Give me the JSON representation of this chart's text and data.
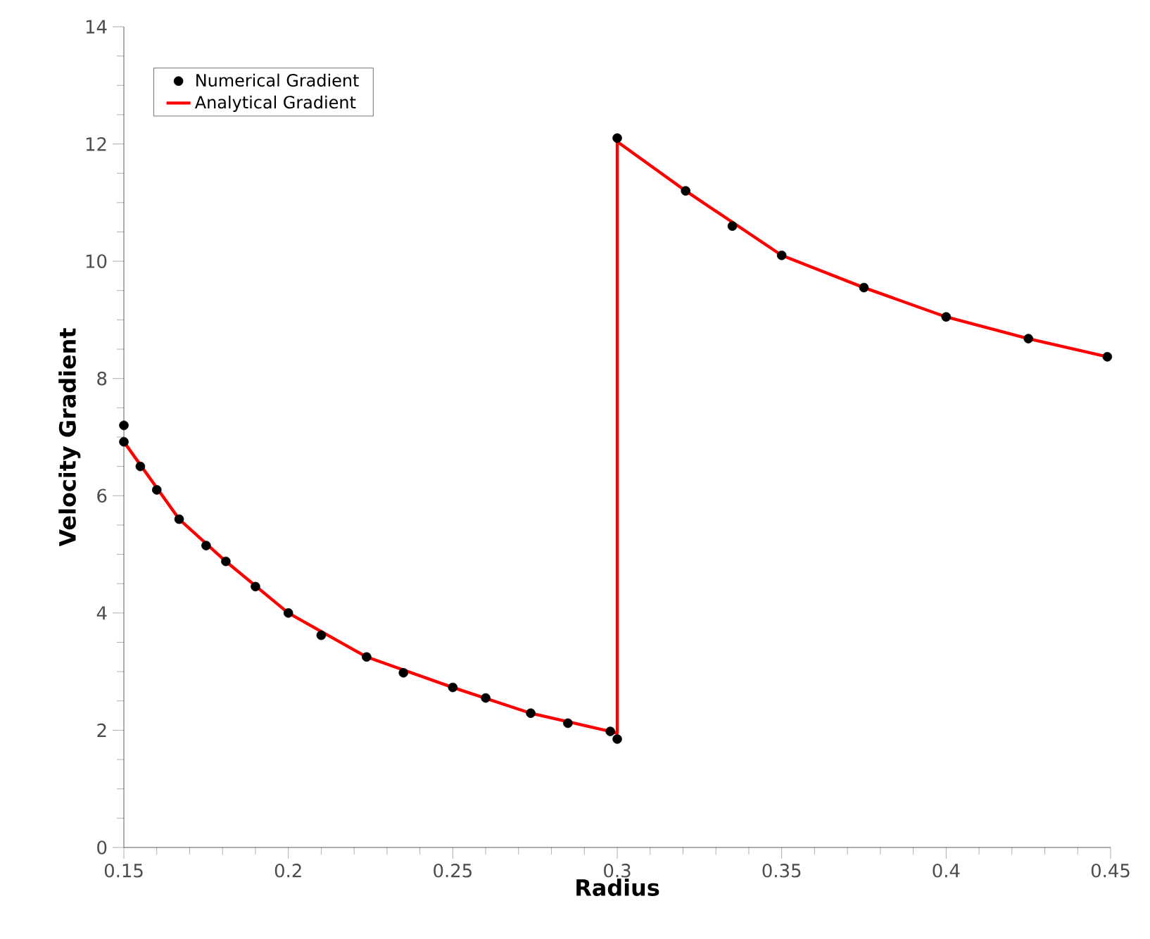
{
  "chart_data": {
    "type": "line",
    "xlabel": "Radius",
    "ylabel": "Velocity Gradient",
    "xlim": [
      0.15,
      0.45
    ],
    "ylim": [
      0,
      14
    ],
    "xticks": [
      0.15,
      0.2,
      0.25,
      0.3,
      0.35,
      0.4,
      0.45
    ],
    "yticks": [
      0,
      2,
      4,
      6,
      8,
      10,
      12,
      14
    ],
    "legend": "top left",
    "series": [
      {
        "name": "Numerical Gradient",
        "type": "scatter",
        "marker": "circle",
        "color": "#000000",
        "x": [
          0.15,
          0.15,
          0.155,
          0.16,
          0.1668,
          0.175,
          0.181,
          0.19,
          0.2,
          0.21,
          0.2238,
          0.235,
          0.25,
          0.26,
          0.2737,
          0.285,
          0.2979,
          0.3,
          0.3,
          0.3208,
          0.335,
          0.35,
          0.375,
          0.4,
          0.425,
          0.449
        ],
        "values": [
          7.2,
          6.92,
          6.5,
          6.1,
          5.6,
          5.15,
          4.88,
          4.45,
          4.0,
          3.62,
          3.25,
          2.98,
          2.73,
          2.55,
          2.29,
          2.12,
          1.98,
          1.85,
          12.1,
          11.2,
          10.6,
          10.1,
          9.55,
          9.05,
          8.68,
          8.37
        ]
      },
      {
        "name": "Analytical Gradient",
        "marker": "none",
        "color": "#ff0000",
        "x": [
          0.15,
          0.1668,
          0.181,
          0.2,
          0.2238,
          0.25,
          0.2737,
          0.2979,
          0.3,
          0.3,
          0.3208,
          0.35,
          0.375,
          0.4,
          0.425,
          0.449
        ],
        "values": [
          6.92,
          5.6,
          4.88,
          4.0,
          3.25,
          2.73,
          2.29,
          1.98,
          1.95,
          12.04,
          11.2,
          10.1,
          9.55,
          9.05,
          8.68,
          8.37
        ]
      }
    ]
  }
}
